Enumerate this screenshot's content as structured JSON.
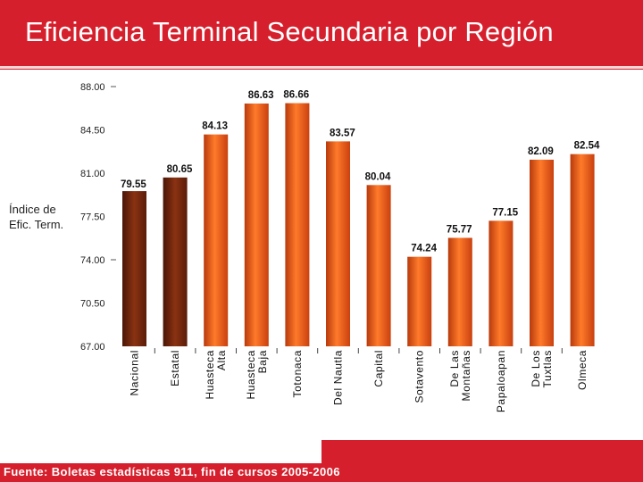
{
  "header": {
    "title": "Eficiencia Terminal Secundaria por Región"
  },
  "footer": {
    "source": "Fuente: Boletas estadísticas 911, fin de cursos 2005-2006"
  },
  "colors": {
    "header_red": "#d61f2c",
    "bar_orange": "#e8531b",
    "bar_dark": "#7a2a10"
  },
  "chart_data": {
    "type": "bar",
    "title": "",
    "xlabel": "",
    "ylabel": [
      "Índice de",
      "Efic. Term."
    ],
    "ylim": [
      67.0,
      88.0
    ],
    "yticks": [
      "88.00",
      "84.50",
      "81.00",
      "77.50",
      "74.00",
      "70.50",
      "67.00"
    ],
    "categories": [
      [
        "Nacional"
      ],
      [
        "Estatal"
      ],
      [
        "Huasteca",
        "Alta"
      ],
      [
        "Huasteca",
        "Baja"
      ],
      [
        "Totonaca"
      ],
      [
        "Del Nautla"
      ],
      [
        "Capital"
      ],
      [
        "Sotavento"
      ],
      [
        "De Las",
        "Montañas"
      ],
      [
        "Papaloapan"
      ],
      [
        "De Los",
        "Tuxtlas"
      ],
      [
        "Olmeca"
      ]
    ],
    "values": [
      79.55,
      80.65,
      84.13,
      86.63,
      86.66,
      83.57,
      80.04,
      74.24,
      75.77,
      77.15,
      82.09,
      82.54
    ],
    "value_labels": [
      "79.55",
      "80.65",
      "84.13",
      "86.63",
      "86.66",
      "83.57",
      "80.04",
      "74.24",
      "75.77",
      "77.15",
      "82.09",
      "82.54"
    ],
    "bar_styles": [
      "dark",
      "dark",
      "orange",
      "orange",
      "orange",
      "orange",
      "orange",
      "orange",
      "orange",
      "orange",
      "orange",
      "orange"
    ],
    "grid": false,
    "legend": "none"
  }
}
